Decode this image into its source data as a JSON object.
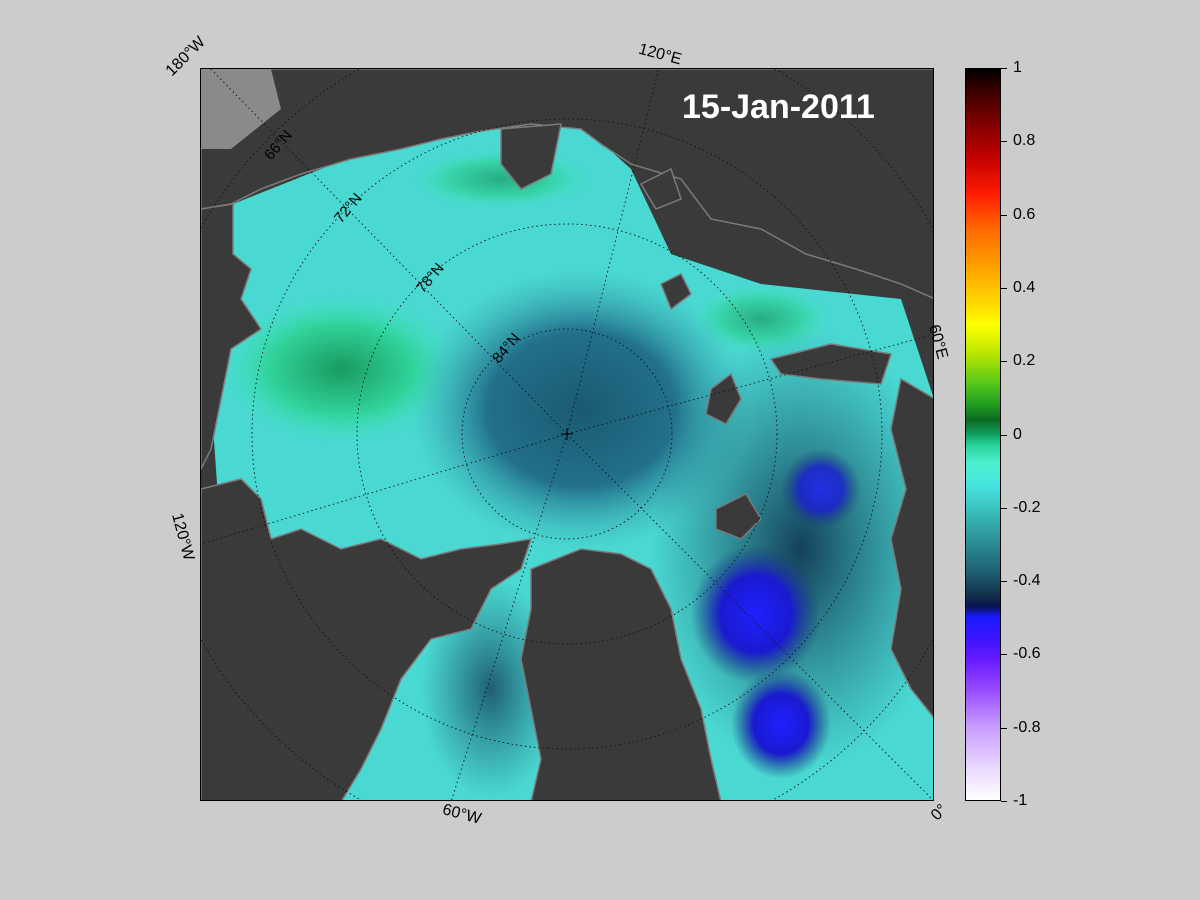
{
  "map": {
    "date": "15-Jan-2011",
    "edge_labels": {
      "top_left": "180°W",
      "top": "120°E",
      "right": "60°E",
      "left": "120°W",
      "bottom": "60°W",
      "bottom_right": "0°"
    },
    "latitude_labels": [
      "66°N",
      "72°N",
      "78°N",
      "84°N"
    ],
    "colors": {
      "land": "#3a3a3a",
      "land_edge": "#7a7a7a",
      "background": "#cccccc"
    }
  },
  "colorbar": {
    "min": -1,
    "max": 1,
    "ticks": [
      "1",
      "0.8",
      "0.6",
      "0.4",
      "0.2",
      "0",
      "-0.2",
      "-0.4",
      "-0.6",
      "-0.8",
      "-1"
    ]
  }
}
